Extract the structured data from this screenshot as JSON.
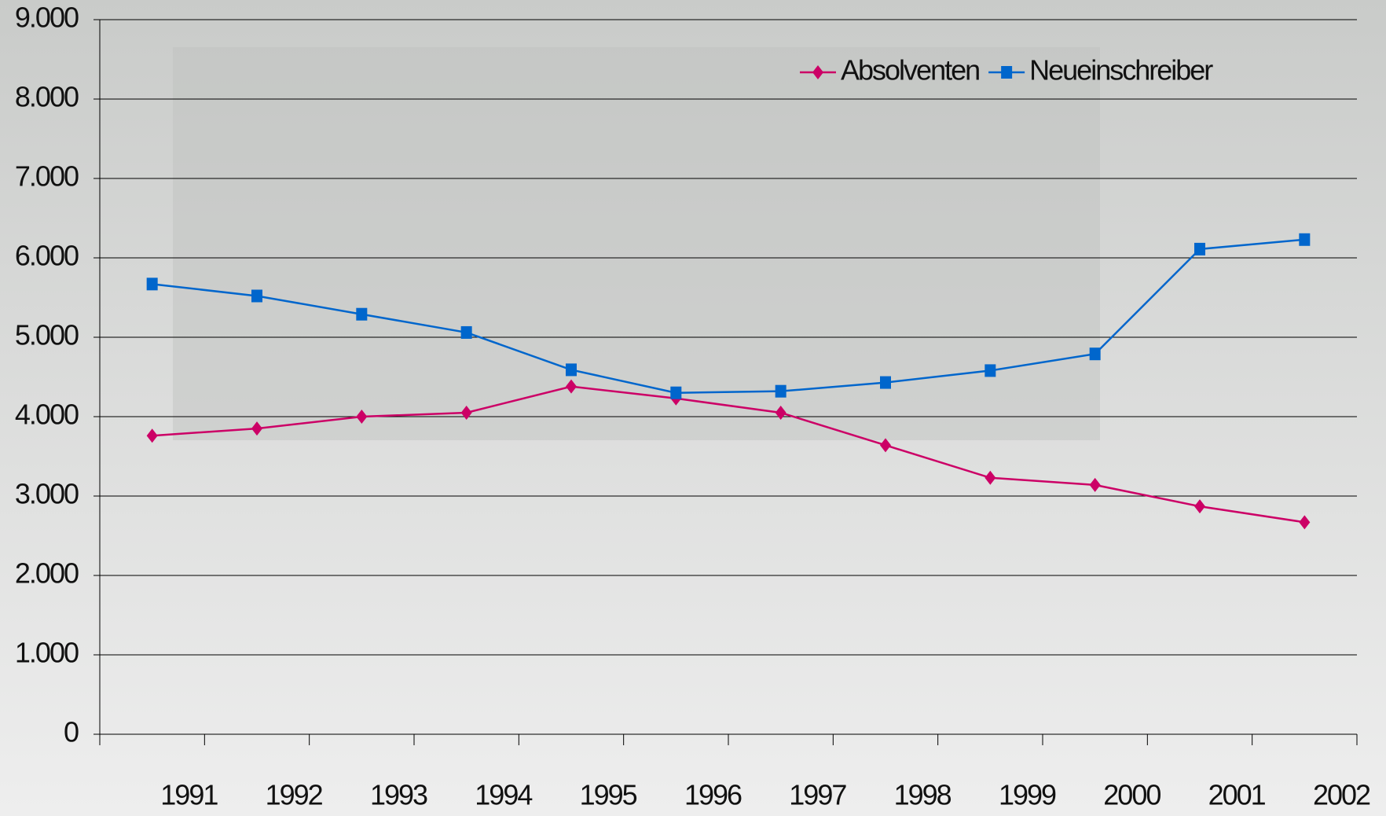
{
  "chart_data": {
    "type": "line",
    "categories": [
      "1991",
      "1992",
      "1993",
      "1994",
      "1995",
      "1996",
      "1997",
      "1998",
      "1999",
      "2000",
      "2001",
      "2002"
    ],
    "series": [
      {
        "name": "Absolventen",
        "color": "#cc0066",
        "marker": "diamond",
        "values": [
          3760,
          3850,
          4000,
          4050,
          4380,
          4230,
          4050,
          3640,
          3230,
          3140,
          2870,
          2670
        ]
      },
      {
        "name": "Neueinschreiber",
        "color": "#0066cc",
        "marker": "square",
        "values": [
          5670,
          5520,
          5290,
          5060,
          4590,
          4300,
          4320,
          4430,
          4580,
          4790,
          6110,
          6230
        ]
      }
    ],
    "ylim": [
      0,
      9000
    ],
    "yticks": [
      0,
      {
        "value": 1000,
        "label": "1.000"
      },
      {
        "value": 2000,
        "label": "2.000"
      },
      {
        "value": 3000,
        "label": "3.000"
      },
      {
        "value": 4000,
        "label": "4.000"
      },
      {
        "value": 5000,
        "label": "5.000"
      },
      {
        "value": 6000,
        "label": "6.000"
      },
      {
        "value": 7000,
        "label": "7.000"
      },
      {
        "value": 8000,
        "label": "8.000"
      },
      {
        "value": 9000,
        "label": "9.000"
      }
    ],
    "grid": true,
    "legend": "top-right"
  }
}
